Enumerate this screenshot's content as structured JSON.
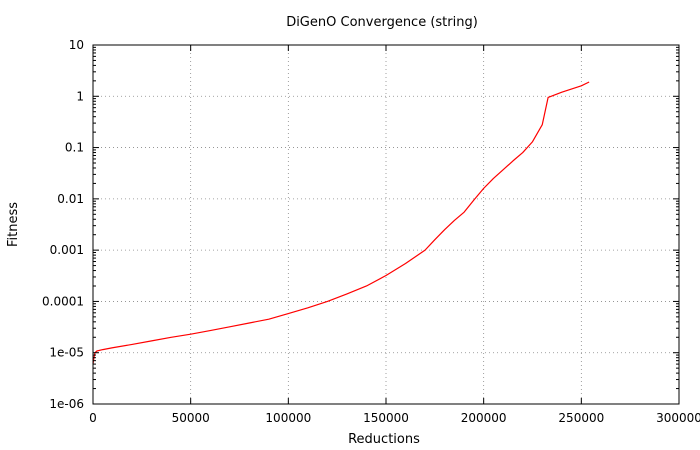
{
  "chart_data": {
    "type": "line",
    "title": "DiGenO Convergence (string)",
    "xlabel": "Reductions",
    "ylabel": "Fitness",
    "x_scale": "linear",
    "y_scale": "log",
    "xlim": [
      0,
      300000
    ],
    "ylim": [
      1e-06,
      10
    ],
    "grid": true,
    "x_ticks": [
      0,
      50000,
      100000,
      150000,
      200000,
      250000,
      300000
    ],
    "x_tick_labels": [
      "0",
      "50000",
      "100000",
      "150000",
      "200000",
      "250000",
      "300000"
    ],
    "y_ticks": [
      1e-06,
      1e-05,
      0.0001,
      0.001,
      0.01,
      0.1,
      1,
      10
    ],
    "y_tick_labels": [
      "1e-06",
      "1e-05",
      "0.0001",
      "0.001",
      "0.01",
      "0.1",
      "1",
      "10"
    ],
    "line_color": "#ff0000",
    "series": [
      {
        "x": [
          0,
          500,
          1000,
          2000,
          5000,
          10000,
          20000,
          30000,
          40000,
          50000,
          60000,
          70000,
          80000,
          90000,
          100000,
          110000,
          120000,
          130000,
          140000,
          150000,
          160000,
          170000,
          175000,
          180000,
          185000,
          190000,
          195000,
          200000,
          205000,
          210000,
          215000,
          220000,
          225000,
          230000,
          233000,
          240000,
          250000,
          254000
        ],
        "y": [
          6e-06,
          8e-06,
          1e-05,
          1.08e-05,
          1.15e-05,
          1.25e-05,
          1.45e-05,
          1.7e-05,
          2e-05,
          2.3e-05,
          2.7e-05,
          3.2e-05,
          3.8e-05,
          4.5e-05,
          5.8e-05,
          7.5e-05,
          0.0001,
          0.00014,
          0.0002,
          0.00032,
          0.00055,
          0.001,
          0.0016,
          0.0025,
          0.0038,
          0.0055,
          0.0095,
          0.016,
          0.025,
          0.037,
          0.055,
          0.08,
          0.13,
          0.28,
          0.95,
          1.2,
          1.6,
          1.9
        ]
      }
    ]
  }
}
